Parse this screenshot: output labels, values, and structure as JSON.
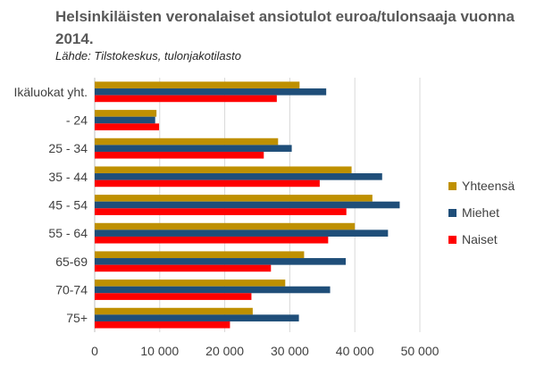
{
  "chart_data": {
    "type": "bar",
    "orientation": "horizontal",
    "title": "Helsinkiläisten veronalaiset ansiotulot euroa/tulonsaaja vuonna 2014.",
    "subtitle": "Lähde: Tilstokeskus, tulonjakotilasto",
    "categories": [
      "Ikäluokat yht.",
      "- 24",
      "25 - 34",
      "35 - 44",
      "45 - 54",
      "55 - 64",
      "65-69",
      "70-74",
      "75+"
    ],
    "series": [
      {
        "name": "Yhteensä",
        "color": "#BF9000",
        "values": [
          31500,
          9500,
          28200,
          39500,
          42700,
          40000,
          32200,
          29300,
          24300
        ]
      },
      {
        "name": "Miehet",
        "color": "#1F4E79",
        "values": [
          35600,
          9300,
          30300,
          44200,
          46900,
          45100,
          38600,
          36200,
          31400
        ]
      },
      {
        "name": "Naiset",
        "color": "#FF0000",
        "values": [
          28000,
          9900,
          26000,
          34600,
          38700,
          35900,
          27100,
          24100,
          20800
        ]
      }
    ],
    "xlim": [
      0,
      50000
    ],
    "xticks": [
      0,
      10000,
      20000,
      30000,
      40000,
      50000
    ],
    "xtick_labels": [
      "0",
      "10 000",
      "20 000",
      "30 000",
      "40 000",
      "50 000"
    ],
    "grid": true,
    "legend_position": "right"
  }
}
